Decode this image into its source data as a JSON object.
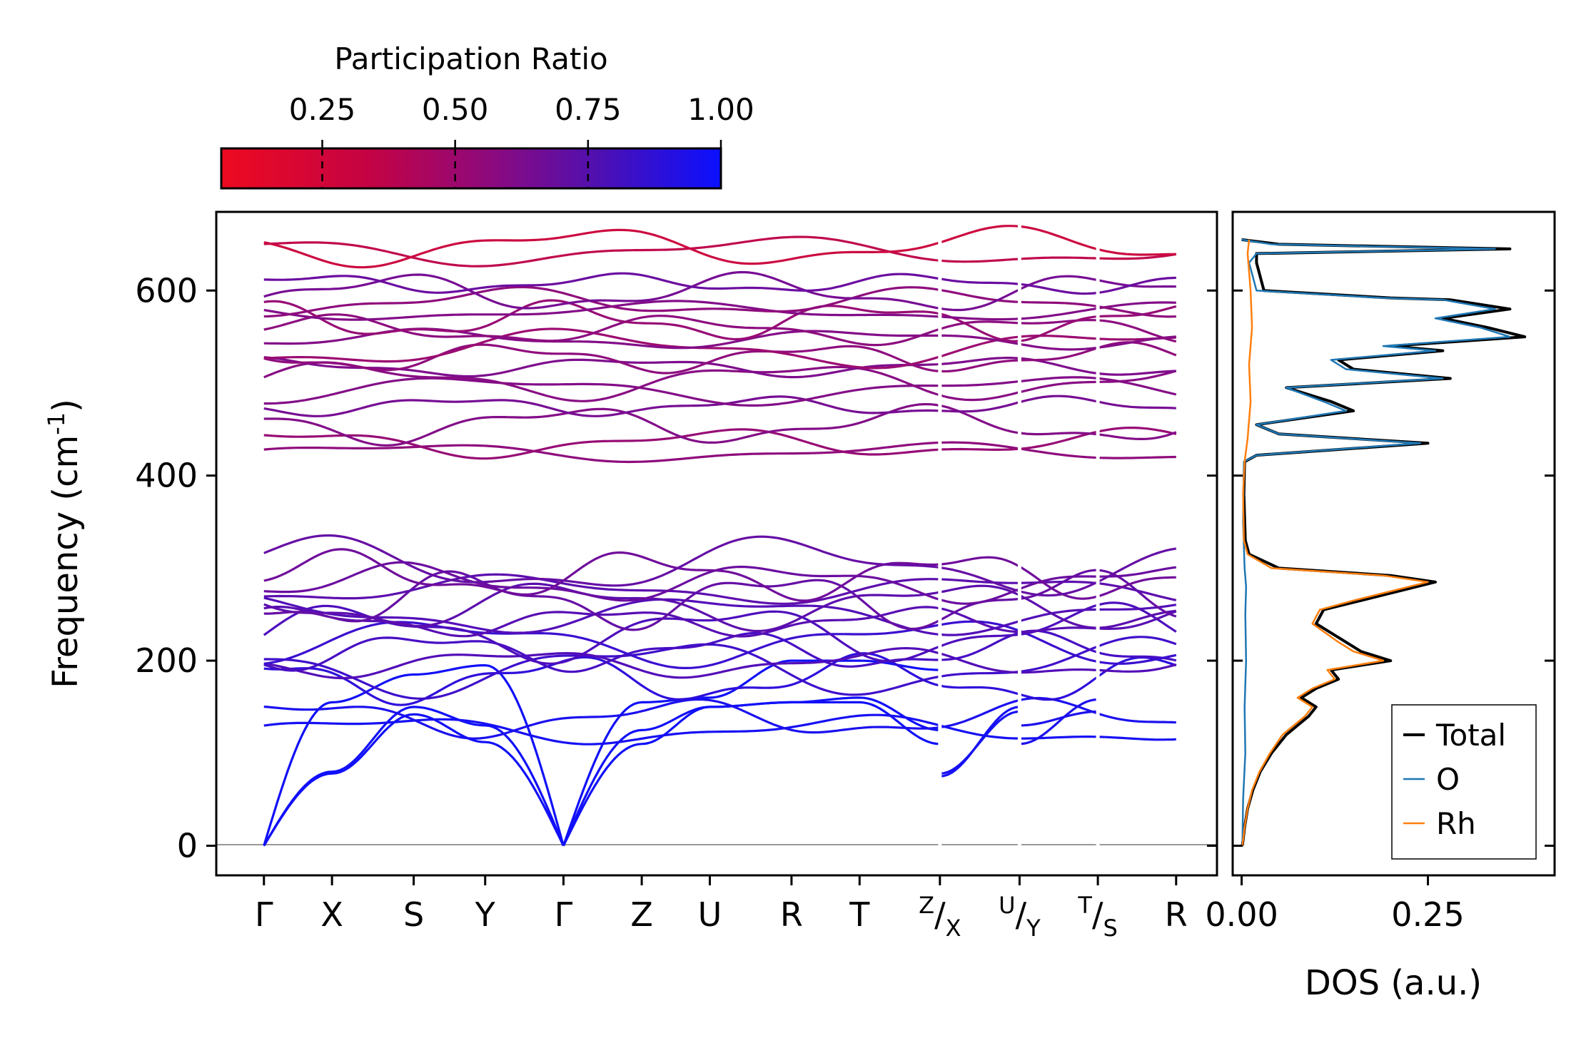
{
  "chart_data": [
    {
      "type": "line",
      "title": "",
      "xlabel": "",
      "ylabel": "Frequency (cm",
      "ylabel_sup": "-1",
      "ylabel_tail": ")",
      "ylim": [
        -32,
        685
      ],
      "yticks": [
        0,
        200,
        400,
        600
      ],
      "ytick_labels": [
        "0",
        "200",
        "400",
        "600"
      ],
      "kpath_labels": [
        {
          "main": "Γ",
          "pos": 0
        },
        {
          "main": "X",
          "pos": 1
        },
        {
          "main": "S",
          "pos": 2.2
        },
        {
          "main": "Y",
          "pos": 3.25
        },
        {
          "main": "Γ",
          "pos": 4.4
        },
        {
          "main": "Z",
          "pos": 5.55
        },
        {
          "main": "U",
          "pos": 6.55
        },
        {
          "main": "R",
          "pos": 7.75
        },
        {
          "main": "T",
          "pos": 8.75
        },
        {
          "sup": "Z",
          "main": "/X",
          "pos": 9.93
        },
        {
          "sup": "U",
          "main": "/Y",
          "pos": 11.1
        },
        {
          "sup": "T",
          "main": "/S",
          "pos": 12.25
        },
        {
          "main": "R",
          "pos": 13.4
        }
      ],
      "xlim": [
        -0.7,
        14.0
      ],
      "segment_breaks": [
        9.93,
        11.1,
        12.25
      ],
      "color_key": "participation_ratio",
      "optical_bands_low": [
        {
          "start": 140,
          "end": 110,
          "pr": 0.95
        },
        {
          "start": 150,
          "end": 125,
          "pr": 0.93
        },
        {
          "start": 175,
          "end": 185,
          "pr": 0.85
        },
        {
          "start": 190,
          "end": 195,
          "pr": 0.78
        },
        {
          "start": 195,
          "end": 200,
          "pr": 0.7
        },
        {
          "start": 205,
          "end": 215,
          "pr": 0.75
        },
        {
          "start": 215,
          "end": 225,
          "pr": 0.8
        },
        {
          "start": 225,
          "end": 235,
          "pr": 0.72
        },
        {
          "start": 235,
          "end": 250,
          "pr": 0.68
        },
        {
          "start": 245,
          "end": 255,
          "pr": 0.7
        },
        {
          "start": 255,
          "end": 265,
          "pr": 0.66
        },
        {
          "start": 262,
          "end": 270,
          "pr": 0.62
        },
        {
          "start": 272,
          "end": 282,
          "pr": 0.66
        },
        {
          "start": 280,
          "end": 288,
          "pr": 0.6
        },
        {
          "start": 290,
          "end": 295,
          "pr": 0.58
        },
        {
          "start": 305,
          "end": 300,
          "pr": 0.62
        }
      ],
      "optical_bands_high": [
        {
          "start": 420,
          "end": 430,
          "pr": 0.45
        },
        {
          "start": 430,
          "end": 440,
          "pr": 0.42
        },
        {
          "start": 460,
          "end": 450,
          "pr": 0.5
        },
        {
          "start": 470,
          "end": 480,
          "pr": 0.55
        },
        {
          "start": 490,
          "end": 495,
          "pr": 0.5
        },
        {
          "start": 500,
          "end": 505,
          "pr": 0.48
        },
        {
          "start": 515,
          "end": 520,
          "pr": 0.52
        },
        {
          "start": 525,
          "end": 530,
          "pr": 0.45
        },
        {
          "start": 535,
          "end": 540,
          "pr": 0.4
        },
        {
          "start": 545,
          "end": 550,
          "pr": 0.5
        },
        {
          "start": 555,
          "end": 560,
          "pr": 0.46
        },
        {
          "start": 565,
          "end": 570,
          "pr": 0.42
        },
        {
          "start": 575,
          "end": 580,
          "pr": 0.5
        },
        {
          "start": 585,
          "end": 590,
          "pr": 0.45
        },
        {
          "start": 600,
          "end": 595,
          "pr": 0.55
        },
        {
          "start": 615,
          "end": 600,
          "pr": 0.6
        },
        {
          "start": 640,
          "end": 645,
          "pr": 0.25
        },
        {
          "start": 650,
          "end": 645,
          "pr": 0.2
        }
      ],
      "colorbar": {
        "label": "Participation Ratio",
        "ticks": [
          0.25,
          0.5,
          0.75,
          1.0
        ],
        "tick_labels": [
          "0.25",
          "0.50",
          "0.75",
          "1.00"
        ],
        "range": [
          0.06,
          1.0
        ],
        "low_color": "#ee0a20",
        "high_color": "#0a10ff"
      }
    },
    {
      "type": "line",
      "xlabel": "DOS (a.u.)",
      "xlim": [
        -0.012,
        0.42
      ],
      "xticks": [
        0.0,
        0.25
      ],
      "xtick_labels": [
        "0.00",
        "0.25"
      ],
      "ylim": [
        -32,
        685
      ],
      "series": [
        {
          "name": "Total",
          "color": "#000000",
          "points": [
            [
              0.001,
              0
            ],
            [
              0.004,
              20
            ],
            [
              0.008,
              40
            ],
            [
              0.015,
              60
            ],
            [
              0.025,
              80
            ],
            [
              0.04,
              100
            ],
            [
              0.06,
              120
            ],
            [
              0.09,
              140
            ],
            [
              0.1,
              150
            ],
            [
              0.08,
              160
            ],
            [
              0.1,
              170
            ],
            [
              0.13,
              180
            ],
            [
              0.12,
              190
            ],
            [
              0.2,
              200
            ],
            [
              0.16,
              210
            ],
            [
              0.14,
              220
            ],
            [
              0.1,
              240
            ],
            [
              0.11,
              255
            ],
            [
              0.16,
              265
            ],
            [
              0.26,
              285
            ],
            [
              0.2,
              292
            ],
            [
              0.05,
              300
            ],
            [
              0.01,
              315
            ],
            [
              0.005,
              330
            ],
            [
              0.003,
              380
            ],
            [
              0.004,
              415
            ],
            [
              0.02,
              422
            ],
            [
              0.25,
              435
            ],
            [
              0.05,
              445
            ],
            [
              0.02,
              455
            ],
            [
              0.15,
              470
            ],
            [
              0.12,
              480
            ],
            [
              0.06,
              495
            ],
            [
              0.28,
              505
            ],
            [
              0.15,
              515
            ],
            [
              0.13,
              525
            ],
            [
              0.27,
              535
            ],
            [
              0.2,
              540
            ],
            [
              0.38,
              550
            ],
            [
              0.33,
              560
            ],
            [
              0.27,
              570
            ],
            [
              0.36,
              580
            ],
            [
              0.28,
              590
            ],
            [
              0.2,
              592
            ],
            [
              0.03,
              600
            ],
            [
              0.02,
              630
            ],
            [
              0.02,
              640
            ],
            [
              0.36,
              645
            ],
            [
              0.05,
              650
            ],
            [
              0.0,
              655
            ]
          ]
        },
        {
          "name": "O",
          "color": "#1f77b4",
          "points": [
            [
              0.001,
              0
            ],
            [
              0.002,
              50
            ],
            [
              0.005,
              100
            ],
            [
              0.004,
              150
            ],
            [
              0.006,
              200
            ],
            [
              0.005,
              250
            ],
            [
              0.006,
              280
            ],
            [
              0.004,
              300
            ],
            [
              0.002,
              350
            ],
            [
              0.003,
              415
            ],
            [
              0.02,
              422
            ],
            [
              0.24,
              435
            ],
            [
              0.05,
              445
            ],
            [
              0.02,
              455
            ],
            [
              0.14,
              470
            ],
            [
              0.11,
              480
            ],
            [
              0.06,
              495
            ],
            [
              0.27,
              505
            ],
            [
              0.14,
              515
            ],
            [
              0.12,
              525
            ],
            [
              0.26,
              535
            ],
            [
              0.19,
              540
            ],
            [
              0.36,
              550
            ],
            [
              0.32,
              560
            ],
            [
              0.26,
              570
            ],
            [
              0.34,
              580
            ],
            [
              0.27,
              590
            ],
            [
              0.19,
              592
            ],
            [
              0.02,
              600
            ],
            [
              0.01,
              630
            ],
            [
              0.02,
              640
            ],
            [
              0.34,
              645
            ],
            [
              0.04,
              650
            ],
            [
              0.0,
              655
            ]
          ]
        },
        {
          "name": "Rh",
          "color": "#ff7f0e",
          "points": [
            [
              0.001,
              0
            ],
            [
              0.004,
              20
            ],
            [
              0.008,
              40
            ],
            [
              0.014,
              60
            ],
            [
              0.024,
              80
            ],
            [
              0.038,
              100
            ],
            [
              0.055,
              120
            ],
            [
              0.085,
              140
            ],
            [
              0.095,
              150
            ],
            [
              0.075,
              160
            ],
            [
              0.095,
              170
            ],
            [
              0.125,
              180
            ],
            [
              0.115,
              190
            ],
            [
              0.19,
              200
            ],
            [
              0.15,
              210
            ],
            [
              0.13,
              220
            ],
            [
              0.095,
              240
            ],
            [
              0.105,
              255
            ],
            [
              0.15,
              265
            ],
            [
              0.25,
              285
            ],
            [
              0.19,
              292
            ],
            [
              0.04,
              300
            ],
            [
              0.008,
              315
            ],
            [
              0.003,
              330
            ],
            [
              0.002,
              380
            ],
            [
              0.004,
              415
            ],
            [
              0.008,
              440
            ],
            [
              0.012,
              480
            ],
            [
              0.01,
              520
            ],
            [
              0.014,
              560
            ],
            [
              0.012,
              600
            ],
            [
              0.008,
              640
            ],
            [
              0.01,
              655
            ]
          ]
        }
      ],
      "legend": {
        "placement": "lower-right",
        "entries": [
          "Total",
          "O",
          "Rh"
        ]
      }
    }
  ]
}
